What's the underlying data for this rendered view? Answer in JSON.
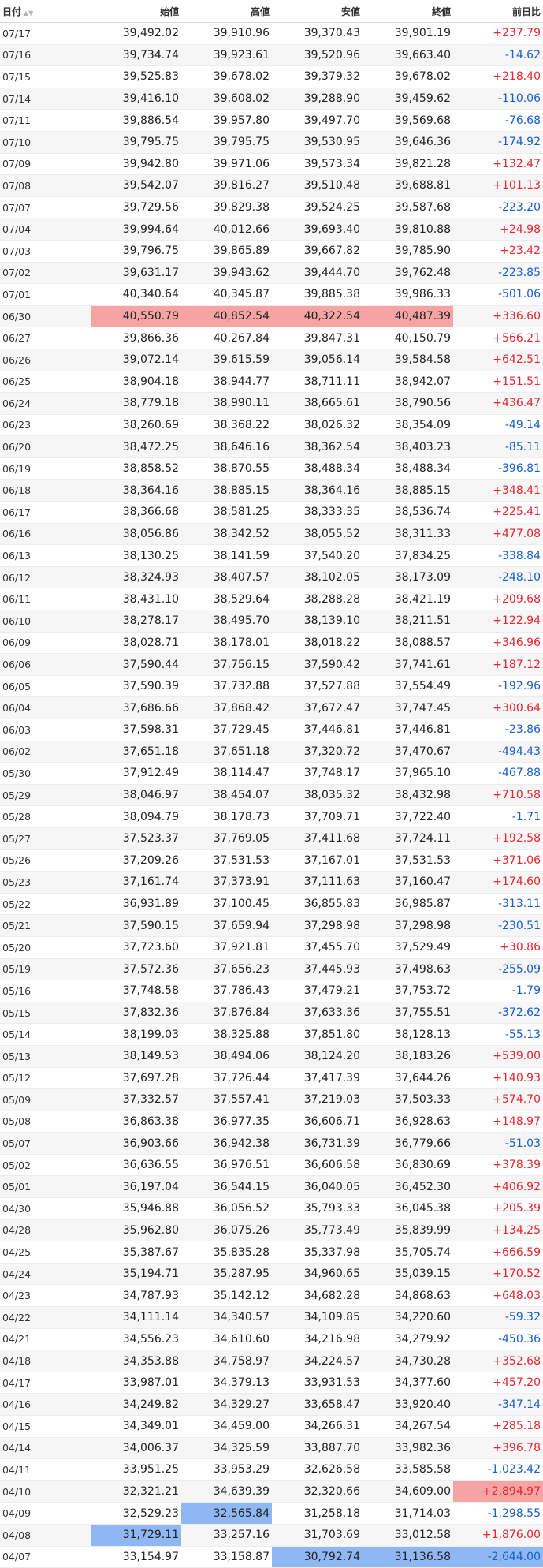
{
  "headers": {
    "date": "日付",
    "open": "始値",
    "high": "高値",
    "low": "安値",
    "close": "終値",
    "change": "前日比"
  },
  "rows": [
    {
      "date": "07/17",
      "open": "39,492.02",
      "high": "39,910.96",
      "low": "39,370.43",
      "close": "39,901.19",
      "change": "+237.79",
      "dir": "pos",
      "hl": {}
    },
    {
      "date": "07/16",
      "open": "39,734.74",
      "high": "39,923.61",
      "low": "39,520.96",
      "close": "39,663.40",
      "change": "-14.62",
      "dir": "neg",
      "hl": {}
    },
    {
      "date": "07/15",
      "open": "39,525.83",
      "high": "39,678.02",
      "low": "39,379.32",
      "close": "39,678.02",
      "change": "+218.40",
      "dir": "pos",
      "hl": {}
    },
    {
      "date": "07/14",
      "open": "39,416.10",
      "high": "39,608.02",
      "low": "39,288.90",
      "close": "39,459.62",
      "change": "-110.06",
      "dir": "neg",
      "hl": {}
    },
    {
      "date": "07/11",
      "open": "39,886.54",
      "high": "39,957.80",
      "low": "39,497.70",
      "close": "39,569.68",
      "change": "-76.68",
      "dir": "neg",
      "hl": {}
    },
    {
      "date": "07/10",
      "open": "39,795.75",
      "high": "39,795.75",
      "low": "39,530.95",
      "close": "39,646.36",
      "change": "-174.92",
      "dir": "neg",
      "hl": {}
    },
    {
      "date": "07/09",
      "open": "39,942.80",
      "high": "39,971.06",
      "low": "39,573.34",
      "close": "39,821.28",
      "change": "+132.47",
      "dir": "pos",
      "hl": {}
    },
    {
      "date": "07/08",
      "open": "39,542.07",
      "high": "39,816.27",
      "low": "39,510.48",
      "close": "39,688.81",
      "change": "+101.13",
      "dir": "pos",
      "hl": {}
    },
    {
      "date": "07/07",
      "open": "39,729.56",
      "high": "39,829.38",
      "low": "39,524.25",
      "close": "39,587.68",
      "change": "-223.20",
      "dir": "neg",
      "hl": {}
    },
    {
      "date": "07/04",
      "open": "39,994.64",
      "high": "40,012.66",
      "low": "39,693.40",
      "close": "39,810.88",
      "change": "+24.98",
      "dir": "pos",
      "hl": {}
    },
    {
      "date": "07/03",
      "open": "39,796.75",
      "high": "39,865.89",
      "low": "39,667.82",
      "close": "39,785.90",
      "change": "+23.42",
      "dir": "pos",
      "hl": {}
    },
    {
      "date": "07/02",
      "open": "39,631.17",
      "high": "39,943.62",
      "low": "39,444.70",
      "close": "39,762.48",
      "change": "-223.85",
      "dir": "neg",
      "hl": {}
    },
    {
      "date": "07/01",
      "open": "40,340.64",
      "high": "40,345.87",
      "low": "39,885.38",
      "close": "39,986.33",
      "change": "-501.06",
      "dir": "neg",
      "hl": {}
    },
    {
      "date": "06/30",
      "open": "40,550.79",
      "high": "40,852.54",
      "low": "40,322.54",
      "close": "40,487.39",
      "change": "+336.60",
      "dir": "pos",
      "hl": {
        "open": "red",
        "high": "red",
        "low": "red",
        "close": "red"
      }
    },
    {
      "date": "06/27",
      "open": "39,866.36",
      "high": "40,267.84",
      "low": "39,847.31",
      "close": "40,150.79",
      "change": "+566.21",
      "dir": "pos",
      "hl": {}
    },
    {
      "date": "06/26",
      "open": "39,072.14",
      "high": "39,615.59",
      "low": "39,056.14",
      "close": "39,584.58",
      "change": "+642.51",
      "dir": "pos",
      "hl": {}
    },
    {
      "date": "06/25",
      "open": "38,904.18",
      "high": "38,944.77",
      "low": "38,711.11",
      "close": "38,942.07",
      "change": "+151.51",
      "dir": "pos",
      "hl": {}
    },
    {
      "date": "06/24",
      "open": "38,779.18",
      "high": "38,990.11",
      "low": "38,665.61",
      "close": "38,790.56",
      "change": "+436.47",
      "dir": "pos",
      "hl": {}
    },
    {
      "date": "06/23",
      "open": "38,260.69",
      "high": "38,368.22",
      "low": "38,026.32",
      "close": "38,354.09",
      "change": "-49.14",
      "dir": "neg",
      "hl": {}
    },
    {
      "date": "06/20",
      "open": "38,472.25",
      "high": "38,646.16",
      "low": "38,362.54",
      "close": "38,403.23",
      "change": "-85.11",
      "dir": "neg",
      "hl": {}
    },
    {
      "date": "06/19",
      "open": "38,858.52",
      "high": "38,870.55",
      "low": "38,488.34",
      "close": "38,488.34",
      "change": "-396.81",
      "dir": "neg",
      "hl": {}
    },
    {
      "date": "06/18",
      "open": "38,364.16",
      "high": "38,885.15",
      "low": "38,364.16",
      "close": "38,885.15",
      "change": "+348.41",
      "dir": "pos",
      "hl": {}
    },
    {
      "date": "06/17",
      "open": "38,366.68",
      "high": "38,581.25",
      "low": "38,333.35",
      "close": "38,536.74",
      "change": "+225.41",
      "dir": "pos",
      "hl": {}
    },
    {
      "date": "06/16",
      "open": "38,056.86",
      "high": "38,342.52",
      "low": "38,055.52",
      "close": "38,311.33",
      "change": "+477.08",
      "dir": "pos",
      "hl": {}
    },
    {
      "date": "06/13",
      "open": "38,130.25",
      "high": "38,141.59",
      "low": "37,540.20",
      "close": "37,834.25",
      "change": "-338.84",
      "dir": "neg",
      "hl": {}
    },
    {
      "date": "06/12",
      "open": "38,324.93",
      "high": "38,407.57",
      "low": "38,102.05",
      "close": "38,173.09",
      "change": "-248.10",
      "dir": "neg",
      "hl": {}
    },
    {
      "date": "06/11",
      "open": "38,431.10",
      "high": "38,529.64",
      "low": "38,288.28",
      "close": "38,421.19",
      "change": "+209.68",
      "dir": "pos",
      "hl": {}
    },
    {
      "date": "06/10",
      "open": "38,278.17",
      "high": "38,495.70",
      "low": "38,139.10",
      "close": "38,211.51",
      "change": "+122.94",
      "dir": "pos",
      "hl": {}
    },
    {
      "date": "06/09",
      "open": "38,028.71",
      "high": "38,178.01",
      "low": "38,018.22",
      "close": "38,088.57",
      "change": "+346.96",
      "dir": "pos",
      "hl": {}
    },
    {
      "date": "06/06",
      "open": "37,590.44",
      "high": "37,756.15",
      "low": "37,590.42",
      "close": "37,741.61",
      "change": "+187.12",
      "dir": "pos",
      "hl": {}
    },
    {
      "date": "06/05",
      "open": "37,590.39",
      "high": "37,732.88",
      "low": "37,527.88",
      "close": "37,554.49",
      "change": "-192.96",
      "dir": "neg",
      "hl": {}
    },
    {
      "date": "06/04",
      "open": "37,686.66",
      "high": "37,868.42",
      "low": "37,672.47",
      "close": "37,747.45",
      "change": "+300.64",
      "dir": "pos",
      "hl": {}
    },
    {
      "date": "06/03",
      "open": "37,598.31",
      "high": "37,729.45",
      "low": "37,446.81",
      "close": "37,446.81",
      "change": "-23.86",
      "dir": "neg",
      "hl": {}
    },
    {
      "date": "06/02",
      "open": "37,651.18",
      "high": "37,651.18",
      "low": "37,320.72",
      "close": "37,470.67",
      "change": "-494.43",
      "dir": "neg",
      "hl": {}
    },
    {
      "date": "05/30",
      "open": "37,912.49",
      "high": "38,114.47",
      "low": "37,748.17",
      "close": "37,965.10",
      "change": "-467.88",
      "dir": "neg",
      "hl": {}
    },
    {
      "date": "05/29",
      "open": "38,046.97",
      "high": "38,454.07",
      "low": "38,035.32",
      "close": "38,432.98",
      "change": "+710.58",
      "dir": "pos",
      "hl": {}
    },
    {
      "date": "05/28",
      "open": "38,094.79",
      "high": "38,178.73",
      "low": "37,709.71",
      "close": "37,722.40",
      "change": "-1.71",
      "dir": "neg",
      "hl": {}
    },
    {
      "date": "05/27",
      "open": "37,523.37",
      "high": "37,769.05",
      "low": "37,411.68",
      "close": "37,724.11",
      "change": "+192.58",
      "dir": "pos",
      "hl": {}
    },
    {
      "date": "05/26",
      "open": "37,209.26",
      "high": "37,531.53",
      "low": "37,167.01",
      "close": "37,531.53",
      "change": "+371.06",
      "dir": "pos",
      "hl": {}
    },
    {
      "date": "05/23",
      "open": "37,161.74",
      "high": "37,373.91",
      "low": "37,111.63",
      "close": "37,160.47",
      "change": "+174.60",
      "dir": "pos",
      "hl": {}
    },
    {
      "date": "05/22",
      "open": "36,931.89",
      "high": "37,100.45",
      "low": "36,855.83",
      "close": "36,985.87",
      "change": "-313.11",
      "dir": "neg",
      "hl": {}
    },
    {
      "date": "05/21",
      "open": "37,590.15",
      "high": "37,659.94",
      "low": "37,298.98",
      "close": "37,298.98",
      "change": "-230.51",
      "dir": "neg",
      "hl": {}
    },
    {
      "date": "05/20",
      "open": "37,723.60",
      "high": "37,921.81",
      "low": "37,455.70",
      "close": "37,529.49",
      "change": "+30.86",
      "dir": "pos",
      "hl": {}
    },
    {
      "date": "05/19",
      "open": "37,572.36",
      "high": "37,656.23",
      "low": "37,445.93",
      "close": "37,498.63",
      "change": "-255.09",
      "dir": "neg",
      "hl": {}
    },
    {
      "date": "05/16",
      "open": "37,748.58",
      "high": "37,786.43",
      "low": "37,479.21",
      "close": "37,753.72",
      "change": "-1.79",
      "dir": "neg",
      "hl": {}
    },
    {
      "date": "05/15",
      "open": "37,832.36",
      "high": "37,876.84",
      "low": "37,633.36",
      "close": "37,755.51",
      "change": "-372.62",
      "dir": "neg",
      "hl": {}
    },
    {
      "date": "05/14",
      "open": "38,199.03",
      "high": "38,325.88",
      "low": "37,851.80",
      "close": "38,128.13",
      "change": "-55.13",
      "dir": "neg",
      "hl": {}
    },
    {
      "date": "05/13",
      "open": "38,149.53",
      "high": "38,494.06",
      "low": "38,124.20",
      "close": "38,183.26",
      "change": "+539.00",
      "dir": "pos",
      "hl": {}
    },
    {
      "date": "05/12",
      "open": "37,697.28",
      "high": "37,726.44",
      "low": "37,417.39",
      "close": "37,644.26",
      "change": "+140.93",
      "dir": "pos",
      "hl": {}
    },
    {
      "date": "05/09",
      "open": "37,332.57",
      "high": "37,557.41",
      "low": "37,219.03",
      "close": "37,503.33",
      "change": "+574.70",
      "dir": "pos",
      "hl": {}
    },
    {
      "date": "05/08",
      "open": "36,863.38",
      "high": "36,977.35",
      "low": "36,606.71",
      "close": "36,928.63",
      "change": "+148.97",
      "dir": "pos",
      "hl": {}
    },
    {
      "date": "05/07",
      "open": "36,903.66",
      "high": "36,942.38",
      "low": "36,731.39",
      "close": "36,779.66",
      "change": "-51.03",
      "dir": "neg",
      "hl": {}
    },
    {
      "date": "05/02",
      "open": "36,636.55",
      "high": "36,976.51",
      "low": "36,606.58",
      "close": "36,830.69",
      "change": "+378.39",
      "dir": "pos",
      "hl": {}
    },
    {
      "date": "05/01",
      "open": "36,197.04",
      "high": "36,544.15",
      "low": "36,040.05",
      "close": "36,452.30",
      "change": "+406.92",
      "dir": "pos",
      "hl": {}
    },
    {
      "date": "04/30",
      "open": "35,946.88",
      "high": "36,056.52",
      "low": "35,793.33",
      "close": "36,045.38",
      "change": "+205.39",
      "dir": "pos",
      "hl": {}
    },
    {
      "date": "04/28",
      "open": "35,962.80",
      "high": "36,075.26",
      "low": "35,773.49",
      "close": "35,839.99",
      "change": "+134.25",
      "dir": "pos",
      "hl": {}
    },
    {
      "date": "04/25",
      "open": "35,387.67",
      "high": "35,835.28",
      "low": "35,337.98",
      "close": "35,705.74",
      "change": "+666.59",
      "dir": "pos",
      "hl": {}
    },
    {
      "date": "04/24",
      "open": "35,194.71",
      "high": "35,287.95",
      "low": "34,960.65",
      "close": "35,039.15",
      "change": "+170.52",
      "dir": "pos",
      "hl": {}
    },
    {
      "date": "04/23",
      "open": "34,787.93",
      "high": "35,142.12",
      "low": "34,682.28",
      "close": "34,868.63",
      "change": "+648.03",
      "dir": "pos",
      "hl": {}
    },
    {
      "date": "04/22",
      "open": "34,111.14",
      "high": "34,340.57",
      "low": "34,109.85",
      "close": "34,220.60",
      "change": "-59.32",
      "dir": "neg",
      "hl": {}
    },
    {
      "date": "04/21",
      "open": "34,556.23",
      "high": "34,610.60",
      "low": "34,216.98",
      "close": "34,279.92",
      "change": "-450.36",
      "dir": "neg",
      "hl": {}
    },
    {
      "date": "04/18",
      "open": "34,353.88",
      "high": "34,758.97",
      "low": "34,224.57",
      "close": "34,730.28",
      "change": "+352.68",
      "dir": "pos",
      "hl": {}
    },
    {
      "date": "04/17",
      "open": "33,987.01",
      "high": "34,379.13",
      "low": "33,931.53",
      "close": "34,377.60",
      "change": "+457.20",
      "dir": "pos",
      "hl": {}
    },
    {
      "date": "04/16",
      "open": "34,249.82",
      "high": "34,329.27",
      "low": "33,658.47",
      "close": "33,920.40",
      "change": "-347.14",
      "dir": "neg",
      "hl": {}
    },
    {
      "date": "04/15",
      "open": "34,349.01",
      "high": "34,459.00",
      "low": "34,266.31",
      "close": "34,267.54",
      "change": "+285.18",
      "dir": "pos",
      "hl": {}
    },
    {
      "date": "04/14",
      "open": "34,006.37",
      "high": "34,325.59",
      "low": "33,887.70",
      "close": "33,982.36",
      "change": "+396.78",
      "dir": "pos",
      "hl": {}
    },
    {
      "date": "04/11",
      "open": "33,951.25",
      "high": "33,953.29",
      "low": "32,626.58",
      "close": "33,585.58",
      "change": "-1,023.42",
      "dir": "neg",
      "hl": {}
    },
    {
      "date": "04/10",
      "open": "32,321.21",
      "high": "34,639.39",
      "low": "32,320.66",
      "close": "34,609.00",
      "change": "+2,894.97",
      "dir": "pos",
      "hl": {
        "change": "red"
      }
    },
    {
      "date": "04/09",
      "open": "32,529.23",
      "high": "32,565.84",
      "low": "31,258.18",
      "close": "31,714.03",
      "change": "-1,298.55",
      "dir": "neg",
      "hl": {
        "high": "blue"
      }
    },
    {
      "date": "04/08",
      "open": "31,729.11",
      "high": "33,257.16",
      "low": "31,703.69",
      "close": "33,012.58",
      "change": "+1,876.00",
      "dir": "pos",
      "hl": {
        "open": "blue"
      }
    },
    {
      "date": "04/07",
      "open": "33,154.97",
      "high": "33,158.87",
      "low": "30,792.74",
      "close": "31,136.58",
      "change": "-2,644.00",
      "dir": "neg",
      "hl": {
        "low": "blue",
        "close": "blue",
        "change": "blue"
      }
    }
  ]
}
